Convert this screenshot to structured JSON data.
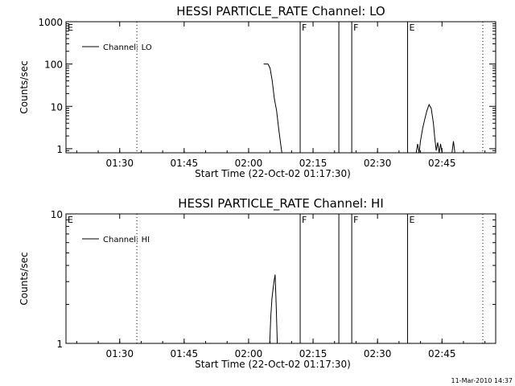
{
  "chart_data": [
    {
      "type": "line",
      "title": "HESSI PARTICLE_RATE Channel: LO",
      "xlabel": "Start Time (22-Oct-02 01:17:30)",
      "ylabel": "Counts/sec",
      "yscale": "log",
      "xlim": [
        "01:17:30",
        "02:57:30"
      ],
      "ylim": [
        0.8,
        1000
      ],
      "x_ticks": [
        "01:30",
        "01:45",
        "02:00",
        "02:15",
        "02:30",
        "02:45"
      ],
      "y_ticks": [
        "1",
        "10",
        "100",
        "1000"
      ],
      "legend": {
        "label": "Channel: LO",
        "placement": "top-left"
      },
      "flags": [
        {
          "label": "E",
          "time": "01:17:30"
        },
        {
          "label": "F",
          "time": "02:12:00"
        },
        {
          "label": "F",
          "time": "02:24:00"
        },
        {
          "label": "E",
          "time": "02:37:00"
        }
      ],
      "solid_markers": [
        "02:12:00",
        "02:21:00",
        "02:24:00",
        "02:37:00"
      ],
      "dotted_markers": [
        "01:34:00",
        "02:54:30"
      ],
      "series": [
        {
          "segments": [
            {
              "x": [
                "02:03:30",
                "02:04:30",
                "02:05:00",
                "02:05:30",
                "02:06:00",
                "02:06:30",
                "02:07:00",
                "02:07:30",
                "02:07:45"
              ],
              "y": [
                100,
                100,
                80,
                40,
                15,
                8,
                3,
                1.2,
                0.8
              ]
            },
            {
              "x": [
                "02:39:00",
                "02:39:20",
                "02:39:40",
                "02:40:00",
                "02:40:30",
                "02:41:00",
                "02:41:30",
                "02:42:00",
                "02:42:30",
                "02:43:00",
                "02:43:20",
                "02:43:40",
                "02:44:00",
                "02:44:20",
                "02:44:40",
                "02:45:00",
                "02:45:20",
                "02:45:40",
                "02:46:00"
              ],
              "y": [
                0.8,
                1.3,
                0.8,
                1.5,
                3,
                5,
                8,
                11,
                9,
                4,
                1.8,
                0.9,
                1.4,
                0.8,
                1.3,
                0.8,
                0.8,
                0.8,
                0.8
              ]
            },
            {
              "x": [
                "02:47:20",
                "02:47:40",
                "02:48:00"
              ],
              "y": [
                0.8,
                1.5,
                0.8
              ]
            }
          ]
        }
      ]
    },
    {
      "type": "line",
      "title": "HESSI PARTICLE_RATE Channel: HI",
      "xlabel": "Start Time (22-Oct-02 01:17:30)",
      "ylabel": "Counts/sec",
      "yscale": "log",
      "xlim": [
        "01:17:30",
        "02:57:30"
      ],
      "ylim": [
        1,
        10
      ],
      "x_ticks": [
        "01:30",
        "01:45",
        "02:00",
        "02:15",
        "02:30",
        "02:45"
      ],
      "y_ticks": [
        "1",
        "10"
      ],
      "legend": {
        "label": "Channel: HI",
        "placement": "top-left"
      },
      "flags": [
        {
          "label": "E",
          "time": "01:17:30"
        },
        {
          "label": "F",
          "time": "02:12:00"
        },
        {
          "label": "F",
          "time": "02:24:00"
        },
        {
          "label": "E",
          "time": "02:37:00"
        }
      ],
      "solid_markers": [
        "02:12:00",
        "02:21:00",
        "02:24:00",
        "02:37:00"
      ],
      "dotted_markers": [
        "01:34:00",
        "02:54:30"
      ],
      "series": [
        {
          "segments": [
            {
              "x": [
                "02:04:55",
                "02:05:10",
                "02:05:25",
                "02:05:40",
                "02:05:55",
                "02:06:10",
                "02:06:25",
                "02:06:40"
              ],
              "y": [
                1,
                1.6,
                2.2,
                2.6,
                3.0,
                3.4,
                2.0,
                1
              ]
            }
          ]
        }
      ]
    }
  ],
  "footer": {
    "timestamp": "11-Mar-2010 14:37"
  }
}
